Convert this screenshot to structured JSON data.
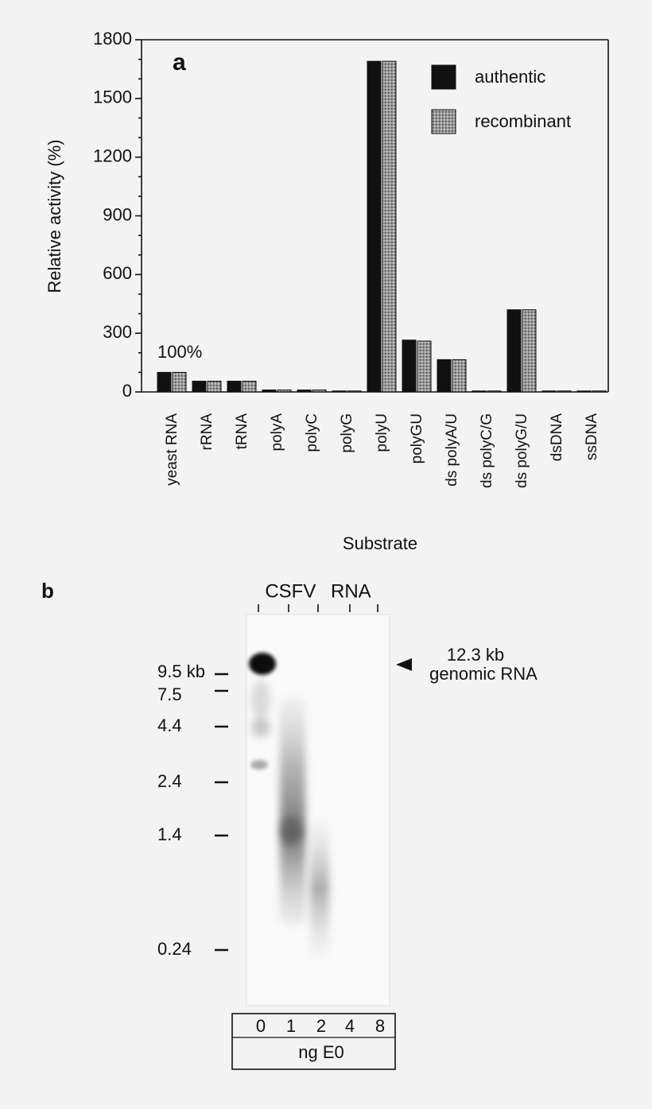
{
  "chart_data": {
    "type": "bar",
    "panel_label": "a",
    "ylabel": "Relative activity (%)",
    "xlabel": "Substrate",
    "annotation": "100%",
    "categories": [
      "yeast RNA",
      "rRNA",
      "tRNA",
      "polyA",
      "polyC",
      "polyG",
      "polyU",
      "polyGU",
      "ds polyA/U",
      "ds polyC/G",
      "ds polyG/U",
      "dsDNA",
      "ssDNA"
    ],
    "series": [
      {
        "name": "authentic",
        "color": "#111111",
        "values": [
          100,
          55,
          55,
          10,
          10,
          5,
          1690,
          265,
          165,
          5,
          420,
          5,
          5
        ]
      },
      {
        "name": "recombinant",
        "color": "#8a8a8a",
        "values": [
          100,
          55,
          55,
          10,
          10,
          5,
          1690,
          260,
          165,
          5,
          420,
          5,
          5
        ]
      }
    ],
    "ylim": [
      0,
      1800
    ],
    "yticks": [
      0,
      300,
      600,
      900,
      1200,
      1500,
      1800
    ],
    "grid": false,
    "legend": "top-right"
  },
  "gel": {
    "panel_label": "b",
    "title": "CSFV RNA",
    "markers": [
      "9.5 kb",
      "7.5",
      "4.4",
      "2.4",
      "1.4",
      "0.24"
    ],
    "arrow_label": [
      "12.3 kb",
      "genomic RNA"
    ],
    "lanes": [
      "0",
      "1",
      "2",
      "4",
      "8"
    ],
    "lane_axis": "ng E0"
  }
}
